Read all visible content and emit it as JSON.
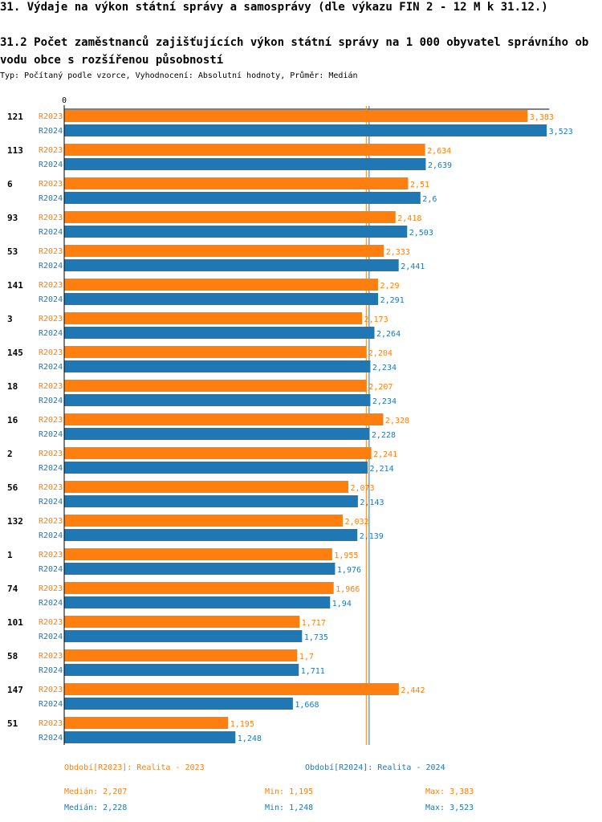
{
  "header": {
    "title": "31. Výdaje na výkon státní správy a samosprávy (dle výkazu FIN 2 - 12 M k 31.12.)",
    "subtitle": "31.2 Počet zaměstnanců zajišťujících výkon státní správy na 1 000 obyvatel správního obvodu obce s rozšířenou působností",
    "type_line": "Typ: Počítaný podle vzorce, Vyhodnocení: Absolutní hodnoty, Průměr: Medián"
  },
  "chart_data": {
    "type": "bar",
    "orientation": "horizontal",
    "x_axis_tick": "0",
    "xlim": [
      0,
      3.75
    ],
    "categories": [
      "121",
      "113",
      "6",
      "93",
      "53",
      "141",
      "3",
      "145",
      "18",
      "16",
      "2",
      "56",
      "132",
      "1",
      "74",
      "101",
      "58",
      "147",
      "51"
    ],
    "series": [
      {
        "name": "R2023",
        "color": "#ff7f0e",
        "values": [
          3.383,
          2.634,
          2.51,
          2.418,
          2.333,
          2.29,
          2.173,
          2.204,
          2.207,
          2.328,
          2.241,
          2.073,
          2.032,
          1.955,
          1.966,
          1.717,
          1.7,
          2.442,
          1.195
        ],
        "value_labels": [
          "3,383",
          "2,634",
          "2,51",
          "2,418",
          "2,333",
          "2,29",
          "2,173",
          "2,204",
          "2,207",
          "2,328",
          "2,241",
          "2,073",
          "2,032",
          "1,955",
          "1,966",
          "1,717",
          "1,7",
          "2,442",
          "1,195"
        ]
      },
      {
        "name": "R2024",
        "color": "#1f77b4",
        "values": [
          3.523,
          2.639,
          2.6,
          2.503,
          2.441,
          2.291,
          2.264,
          2.234,
          2.234,
          2.228,
          2.214,
          2.143,
          2.139,
          1.976,
          1.94,
          1.735,
          1.711,
          1.668,
          1.248
        ],
        "value_labels": [
          "3,523",
          "2,639",
          "2,6",
          "2,503",
          "2,441",
          "2,291",
          "2,264",
          "2,234",
          "2,234",
          "2,228",
          "2,214",
          "2,143",
          "2,139",
          "1,976",
          "1,94",
          "1,735",
          "1,711",
          "1,668",
          "1,248"
        ]
      }
    ],
    "median_lines": [
      {
        "series": "R2023",
        "value": 2.207,
        "color": "#ff7f0e"
      },
      {
        "series": "R2024",
        "value": 2.228,
        "color": "#1f77b4"
      }
    ]
  },
  "legend": {
    "r2023": {
      "period": "Období[R2023]: Realita - 2023",
      "median": "Medián: 2,207",
      "min": "Min: 1,195",
      "max": "Max: 3,383"
    },
    "r2024": {
      "period": "Období[R2024]: Realita - 2024",
      "median": "Medián: 2,228",
      "min": "Min: 1,248",
      "max": "Max: 3,523"
    }
  }
}
